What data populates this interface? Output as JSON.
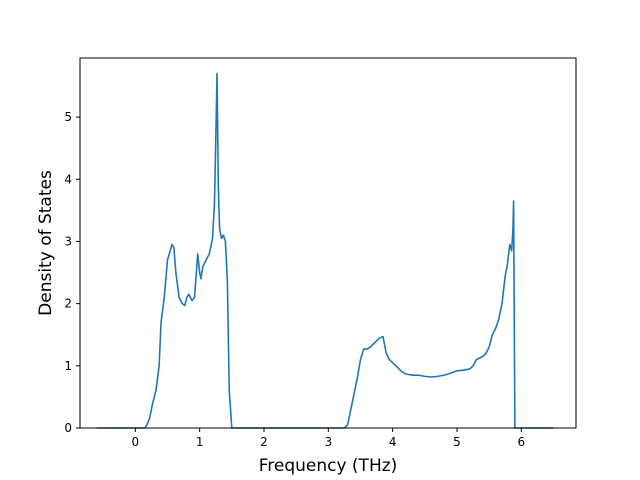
{
  "chart_data": {
    "type": "line",
    "title": "",
    "xlabel": "Frequency (THz)",
    "ylabel": "Density of States",
    "xlim": [
      -0.86,
      6.85
    ],
    "ylim": [
      0,
      5.95
    ],
    "xticks": [
      0,
      1,
      2,
      3,
      4,
      5,
      6
    ],
    "yticks": [
      0,
      1,
      2,
      3,
      4,
      5
    ],
    "grid": false,
    "legend": "none",
    "series": [
      {
        "color": "#1f77b4",
        "x": [
          -0.6,
          0.0,
          0.15,
          0.18,
          0.22,
          0.27,
          0.32,
          0.37,
          0.4,
          0.45,
          0.5,
          0.57,
          0.6,
          0.63,
          0.68,
          0.73,
          0.77,
          0.8,
          0.83,
          0.88,
          0.92,
          0.97,
          1.0,
          1.02,
          1.05,
          1.1,
          1.15,
          1.2,
          1.23,
          1.25,
          1.27,
          1.29,
          1.31,
          1.34,
          1.37,
          1.4,
          1.43,
          1.46,
          1.5,
          2.0,
          2.5,
          3.0,
          3.25,
          3.3,
          3.35,
          3.4,
          3.45,
          3.5,
          3.55,
          3.6,
          3.65,
          3.7,
          3.75,
          3.8,
          3.85,
          3.9,
          3.95,
          4.0,
          4.05,
          4.1,
          4.15,
          4.2,
          4.3,
          4.4,
          4.5,
          4.6,
          4.7,
          4.8,
          4.9,
          5.0,
          5.1,
          5.2,
          5.25,
          5.3,
          5.4,
          5.45,
          5.5,
          5.55,
          5.6,
          5.65,
          5.7,
          5.75,
          5.78,
          5.82,
          5.85,
          5.87,
          5.88,
          5.9,
          5.95,
          6.0,
          6.5
        ],
        "y": [
          0,
          0,
          0,
          0.05,
          0.15,
          0.4,
          0.6,
          1.0,
          1.7,
          2.1,
          2.7,
          2.95,
          2.9,
          2.5,
          2.1,
          2.0,
          1.97,
          2.1,
          2.15,
          2.05,
          2.1,
          2.8,
          2.5,
          2.4,
          2.6,
          2.7,
          2.8,
          3.05,
          3.6,
          4.6,
          5.7,
          3.9,
          3.2,
          3.05,
          3.1,
          3.0,
          2.4,
          0.6,
          0,
          0,
          0,
          0,
          0,
          0.05,
          0.3,
          0.55,
          0.8,
          1.1,
          1.27,
          1.27,
          1.3,
          1.35,
          1.4,
          1.45,
          1.47,
          1.2,
          1.1,
          1.05,
          1.0,
          0.95,
          0.9,
          0.87,
          0.85,
          0.85,
          0.83,
          0.82,
          0.83,
          0.85,
          0.88,
          0.92,
          0.93,
          0.95,
          1.0,
          1.1,
          1.15,
          1.2,
          1.3,
          1.5,
          1.6,
          1.75,
          2.0,
          2.45,
          2.6,
          2.95,
          2.85,
          3.2,
          3.65,
          0.0,
          0,
          0,
          0
        ]
      }
    ]
  }
}
